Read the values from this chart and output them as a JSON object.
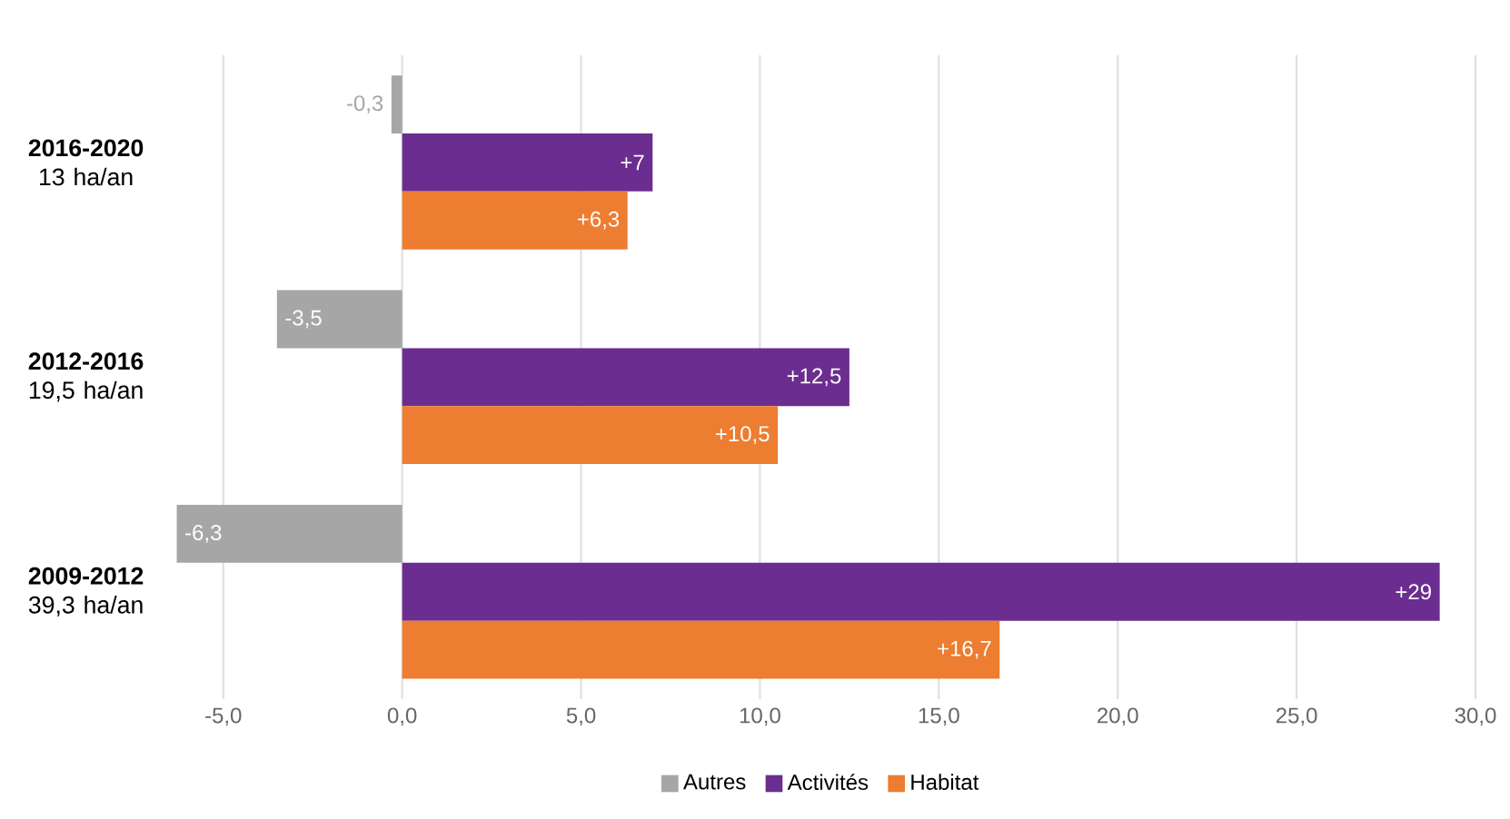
{
  "chart_data": {
    "type": "bar",
    "orientation": "horizontal",
    "categories": [
      "**2016-2020** 13 ha/an",
      "**2012-2016** 19,5 ha/an",
      "**2009-2012** 39,3 ha/an"
    ],
    "series": [
      {
        "name": "Autres",
        "color": "#a6a6a6",
        "values": [
          -0.3,
          -3.5,
          -6.3
        ],
        "value_labels": [
          "-0,3",
          "-3,5",
          "-6,3"
        ]
      },
      {
        "name": "Activités",
        "color": "#6b2d8f",
        "values": [
          7,
          12.5,
          29
        ],
        "value_labels": [
          "+7",
          "+12,5",
          "+29"
        ]
      },
      {
        "name": "Habitat",
        "color": "#ed7d31",
        "values": [
          6.3,
          10.5,
          16.7
        ],
        "value_labels": [
          "+6,3",
          "+10,5",
          "+16,7"
        ]
      }
    ],
    "xlim": [
      -6.5,
      30
    ],
    "xticks": [
      {
        "value": -5,
        "label": "-5,0"
      },
      {
        "value": 0,
        "label": "0,0"
      },
      {
        "value": 5,
        "label": "5,0"
      },
      {
        "value": 10,
        "label": "10,0"
      },
      {
        "value": 15,
        "label": "15,0"
      },
      {
        "value": 20,
        "label": "20,0"
      },
      {
        "value": 25,
        "label": "25,0"
      },
      {
        "value": 30,
        "label": "30,0"
      }
    ],
    "grid": "x",
    "legend": "bottom"
  }
}
